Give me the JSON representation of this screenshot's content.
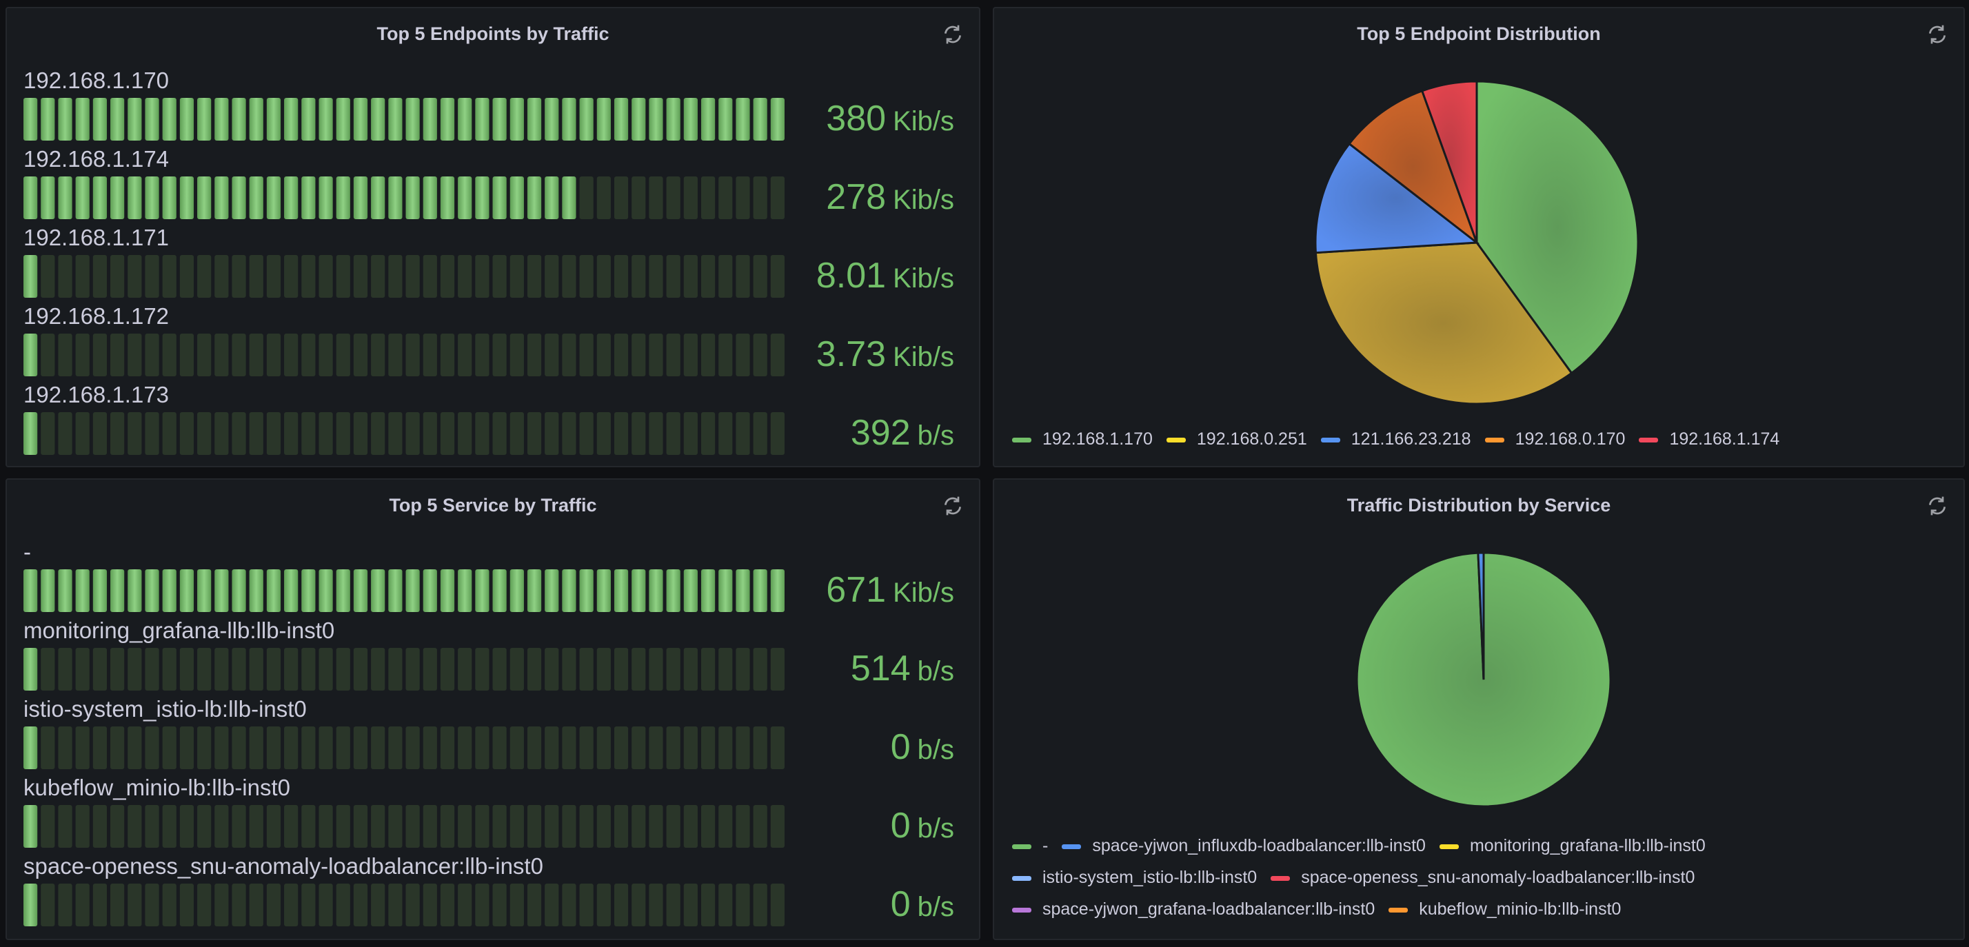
{
  "panels": {
    "top_endpoints": {
      "title": "Top 5 Endpoints by Traffic",
      "rows": [
        {
          "label": "192.168.1.170",
          "value": "380",
          "unit": "Kib/s",
          "fraction": 1.0
        },
        {
          "label": "192.168.1.174",
          "value": "278",
          "unit": "Kib/s",
          "fraction": 0.735
        },
        {
          "label": "192.168.1.171",
          "value": "8.01",
          "unit": "Kib/s",
          "fraction": 0.02
        },
        {
          "label": "192.168.1.172",
          "value": "3.73",
          "unit": "Kib/s",
          "fraction": 0.01
        },
        {
          "label": "192.168.1.173",
          "value": "392",
          "unit": "b/s",
          "fraction": 0.001
        }
      ]
    },
    "endpoint_distribution": {
      "title": "Top 5 Endpoint Distribution",
      "legend": [
        {
          "label": "192.168.1.170",
          "color": "#73bf69"
        },
        {
          "label": "192.168.0.251",
          "color": "#fade2a"
        },
        {
          "label": "121.166.23.218",
          "color": "#5794f2"
        },
        {
          "label": "192.168.0.170",
          "color": "#ff9830"
        },
        {
          "label": "192.168.1.174",
          "color": "#f2495c"
        }
      ]
    },
    "top_services": {
      "title": "Top 5 Service by Traffic",
      "rows": [
        {
          "label": "-",
          "value": "671",
          "unit": "Kib/s",
          "fraction": 1.0
        },
        {
          "label": "monitoring_grafana-llb:llb-inst0",
          "value": "514",
          "unit": "b/s",
          "fraction": 0.001
        },
        {
          "label": "istio-system_istio-lb:llb-inst0",
          "value": "0",
          "unit": "b/s",
          "fraction": 0.0
        },
        {
          "label": "kubeflow_minio-lb:llb-inst0",
          "value": "0",
          "unit": "b/s",
          "fraction": 0.0
        },
        {
          "label": "space-openess_snu-anomaly-loadbalancer:llb-inst0",
          "value": "0",
          "unit": "b/s",
          "fraction": 0.0
        }
      ]
    },
    "service_distribution": {
      "title": "Traffic Distribution by Service",
      "legend": [
        [
          {
            "label": "-",
            "color": "#73bf69"
          },
          {
            "label": "space-yjwon_influxdb-loadbalancer:llb-inst0",
            "color": "#5794f2"
          },
          {
            "label": "monitoring_grafana-llb:llb-inst0",
            "color": "#fade2a"
          }
        ],
        [
          {
            "label": "istio-system_istio-lb:llb-inst0",
            "color": "#8ab8ff"
          },
          {
            "label": "space-openess_snu-anomaly-loadbalancer:llb-inst0",
            "color": "#f2495c"
          }
        ],
        [
          {
            "label": "space-yjwon_grafana-loadbalancer:llb-inst0",
            "color": "#b877d9"
          },
          {
            "label": "kubeflow_minio-lb:llb-inst0",
            "color": "#ff9830"
          }
        ]
      ]
    }
  },
  "chart_data": [
    {
      "type": "pie",
      "title": "Top 5 Endpoint Distribution",
      "categories": [
        "192.168.1.170",
        "192.168.0.251",
        "121.166.23.218",
        "192.168.0.170",
        "192.168.1.174"
      ],
      "values": [
        40.0,
        34.0,
        11.5,
        9.0,
        5.5
      ],
      "colors": [
        "#73bf69",
        "#c9a43a",
        "#5a8ef0",
        "#d5682a",
        "#e8454f"
      ],
      "legend": "bottom"
    },
    {
      "type": "pie",
      "title": "Traffic Distribution by Service",
      "categories": [
        "-",
        "space-yjwon_influxdb-loadbalancer:llb-inst0",
        "monitoring_grafana-llb:llb-inst0",
        "istio-system_istio-lb:llb-inst0",
        "space-openess_snu-anomaly-loadbalancer:llb-inst0",
        "space-yjwon_grafana-loadbalancer:llb-inst0",
        "kubeflow_minio-lb:llb-inst0"
      ],
      "values": [
        99.3,
        0.7,
        0,
        0,
        0,
        0,
        0
      ],
      "colors": [
        "#73bf69",
        "#5794f2",
        "#fade2a",
        "#8ab8ff",
        "#f2495c",
        "#b877d9",
        "#ff9830"
      ],
      "legend": "bottom"
    }
  ]
}
